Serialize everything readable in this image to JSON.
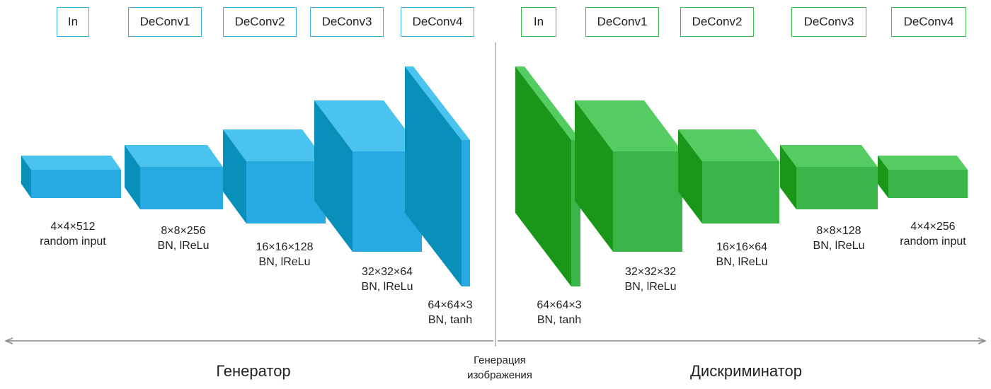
{
  "colors": {
    "gen_front": "#29a9e1",
    "gen_top": "#4ac4ef",
    "gen_side": "#0890bb",
    "dis_front": "#3ab54a",
    "dis_top": "#55cc62",
    "dis_side": "#1a9618",
    "gen_border": "#3ab0e0",
    "dis_border": "#3ebd4f",
    "axis": "#888888"
  },
  "generator": {
    "title": "Генератор",
    "layers": [
      {
        "tag": "In",
        "caption": [
          "4×4×512",
          "random input"
        ]
      },
      {
        "tag": "DeConv1",
        "caption": [
          "8×8×256",
          "BN, lReLu"
        ]
      },
      {
        "tag": "DeConv2",
        "caption": [
          "16×16×128",
          "BN, lReLu"
        ]
      },
      {
        "tag": "DeConv3",
        "caption": [
          "32×32×64",
          "BN, lReLu"
        ]
      },
      {
        "tag": "DeConv4",
        "caption": [
          "64×64×3",
          "BN, tanh"
        ]
      }
    ]
  },
  "discriminator": {
    "title": "Дискриминатор",
    "layers": [
      {
        "tag": "In",
        "caption": [
          "64×64×3",
          "BN, tanh"
        ]
      },
      {
        "tag": "DeConv1",
        "caption": [
          "32×32×32",
          "BN, lReLu"
        ]
      },
      {
        "tag": "DeConv2",
        "caption": [
          "16×16×64",
          "BN, lReLu"
        ]
      },
      {
        "tag": "DeConv3",
        "caption": [
          "8×8×128",
          "BN, lReLu"
        ]
      },
      {
        "tag": "DeConv4",
        "caption": [
          "4×4×256",
          "random input"
        ]
      }
    ]
  },
  "center_label": [
    "Генерация",
    "изображения"
  ]
}
